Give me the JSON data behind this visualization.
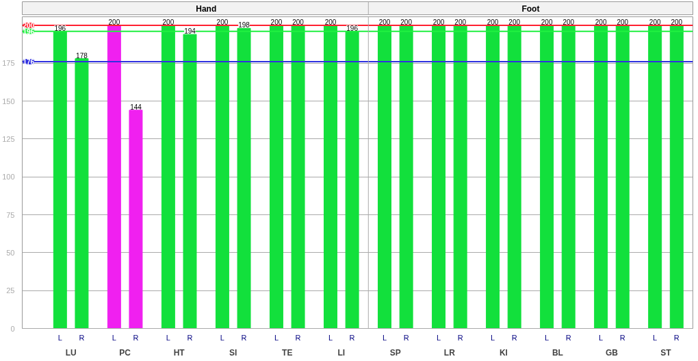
{
  "chart_data": {
    "type": "bar",
    "categories": [
      "LU",
      "PC",
      "HT",
      "SI",
      "TE",
      "LI",
      "SP",
      "LR",
      "KI",
      "BL",
      "GB",
      "ST"
    ],
    "series": [
      {
        "name": "L",
        "values": [
          196,
          200,
          200,
          200,
          200,
          200,
          200,
          200,
          200,
          200,
          200,
          200
        ],
        "colors": [
          "#12e03c",
          "#f020f0",
          "#12e03c",
          "#12e03c",
          "#12e03c",
          "#12e03c",
          "#12e03c",
          "#12e03c",
          "#12e03c",
          "#12e03c",
          "#12e03c",
          "#12e03c"
        ]
      },
      {
        "name": "R",
        "values": [
          178,
          144,
          194,
          198,
          200,
          196,
          200,
          200,
          200,
          200,
          200,
          200
        ],
        "colors": [
          "#12e03c",
          "#f020f0",
          "#12e03c",
          "#12e03c",
          "#12e03c",
          "#12e03c",
          "#12e03c",
          "#12e03c",
          "#12e03c",
          "#12e03c",
          "#12e03c",
          "#12e03c"
        ]
      }
    ],
    "ylim": [
      0,
      205.6
    ],
    "yticks": [
      0,
      25,
      50,
      75,
      100,
      125,
      150,
      175
    ],
    "grid": "y",
    "data_labels": true,
    "ref_lines": [
      {
        "axis": "y",
        "value": 200,
        "label": "200",
        "color": "#ff2030"
      },
      {
        "axis": "y",
        "value": 196,
        "label": "196",
        "color": "#20f040"
      },
      {
        "axis": "y",
        "value": 176,
        "label": "176",
        "color": "#3030e0"
      }
    ],
    "annotations": [
      "Hand",
      "Foot"
    ]
  }
}
